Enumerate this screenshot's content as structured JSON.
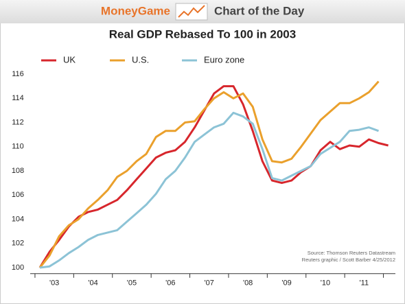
{
  "header": {
    "brand": "MoneyGame",
    "tagline": "Chart of the Day"
  },
  "chart_data": {
    "type": "line",
    "title": "Real GDP Rebased To 100 in 2003",
    "categories": [
      null,
      "'03",
      null,
      null,
      null,
      "'04",
      null,
      null,
      null,
      "'05",
      null,
      null,
      null,
      "'06",
      null,
      null,
      null,
      "'07",
      null,
      null,
      null,
      "'08",
      null,
      null,
      null,
      "'09",
      null,
      null,
      null,
      "'10",
      null,
      null,
      null,
      "'11",
      null,
      null,
      null
    ],
    "series": [
      {
        "name": "UK",
        "color": "#d7262c",
        "values": [
          100,
          101.3,
          102.3,
          103.4,
          104.2,
          104.6,
          104.8,
          105.2,
          105.6,
          106.4,
          107.3,
          108.2,
          109.1,
          109.5,
          109.7,
          110.4,
          111.6,
          113.0,
          114.4,
          115.0,
          115.0,
          113.5,
          111.3,
          108.8,
          107.2,
          107.0,
          107.2,
          107.9,
          108.4,
          109.7,
          110.4,
          109.8,
          110.1,
          110.0,
          110.6,
          110.3,
          110.1
        ]
      },
      {
        "name": "U.S.",
        "color": "#eaa02c",
        "values": [
          100,
          101.0,
          102.6,
          103.5,
          104.0,
          104.9,
          105.6,
          106.4,
          107.5,
          108.0,
          108.8,
          109.4,
          110.8,
          111.3,
          111.3,
          112.0,
          112.1,
          113.1,
          114.0,
          114.5,
          114.0,
          114.4,
          113.3,
          110.6,
          108.8,
          108.7,
          109.0,
          110.0,
          111.1,
          112.2,
          112.9,
          113.6,
          113.6,
          114.0,
          114.5,
          115.4,
          null
        ]
      },
      {
        "name": "Euro zone",
        "color": "#8cc3d6",
        "values": [
          100,
          100.1,
          100.6,
          101.2,
          101.7,
          102.3,
          102.7,
          102.9,
          103.1,
          103.8,
          104.5,
          105.2,
          106.1,
          107.3,
          108.0,
          109.1,
          110.4,
          111.0,
          111.6,
          111.9,
          112.8,
          112.5,
          111.9,
          109.8,
          107.4,
          107.2,
          107.6,
          108.0,
          108.4,
          109.4,
          109.9,
          110.4,
          111.3,
          111.4,
          111.6,
          111.3,
          null
        ]
      }
    ],
    "ylim": [
      99.5,
      116.5
    ],
    "yticks": [
      100,
      102,
      104,
      106,
      108,
      110,
      112,
      114,
      116
    ],
    "grid": false,
    "source": [
      "Source: Thomson Reuters Datastream",
      "Reuters graphic / Scott Barber 4/25/2012"
    ]
  }
}
